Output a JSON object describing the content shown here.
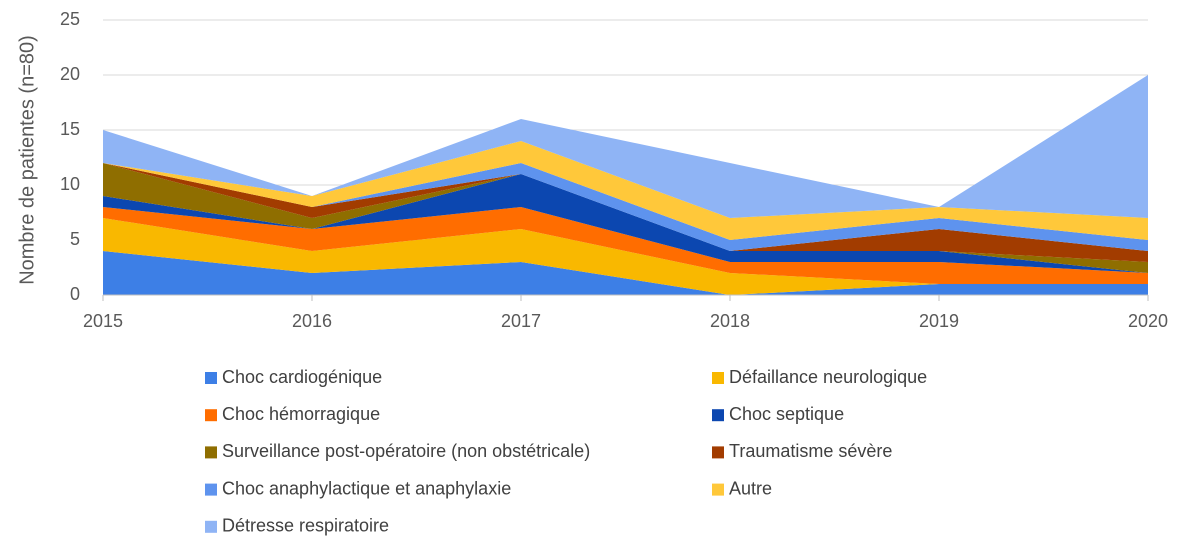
{
  "chart_data": {
    "type": "stacked-area",
    "y_label": "Nombre de patientes (n=80)",
    "x": [
      2015,
      2016,
      2017,
      2018,
      2019,
      2020
    ],
    "xlim": [
      2015,
      2020
    ],
    "xticks": [
      2015,
      2016,
      2017,
      2018,
      2019,
      2020
    ],
    "ylim": [
      0,
      25
    ],
    "yticks": [
      0,
      5,
      10,
      15,
      20,
      25
    ],
    "grid": true,
    "legend": "bottom",
    "series": [
      {
        "name": "Choc cardiogénique",
        "color": "#3d7fe6",
        "values": [
          4,
          2,
          3,
          0,
          1,
          1
        ]
      },
      {
        "name": "Défaillance neurologique",
        "color": "#f9b800",
        "values": [
          3,
          2,
          3,
          2,
          0,
          0
        ]
      },
      {
        "name": "Choc hémorragique",
        "color": "#ff6d00",
        "values": [
          1,
          2,
          2,
          1,
          2,
          1
        ]
      },
      {
        "name": "Choc septique",
        "color": "#0c47b0",
        "values": [
          1,
          0,
          3,
          1,
          1,
          0
        ]
      },
      {
        "name": "Surveillance post-opératoire (non obstétricale)",
        "color": "#8f6e00",
        "values": [
          3,
          1,
          0,
          0,
          0,
          1
        ]
      },
      {
        "name": "Traumatisme sévère",
        "color": "#a23c00",
        "values": [
          0,
          1,
          0,
          0,
          2,
          1
        ]
      },
      {
        "name": "Choc anaphylactique et anaphylaxie",
        "color": "#5e93ee",
        "values": [
          0,
          0,
          1,
          1,
          1,
          1
        ]
      },
      {
        "name": "Autre",
        "color": "#ffc83a",
        "values": [
          0,
          1,
          2,
          2,
          1,
          2
        ]
      },
      {
        "name": "Détresse respiratoire",
        "color": "#8fb4f5",
        "values": [
          3,
          0,
          2,
          5,
          0,
          13
        ]
      }
    ]
  }
}
